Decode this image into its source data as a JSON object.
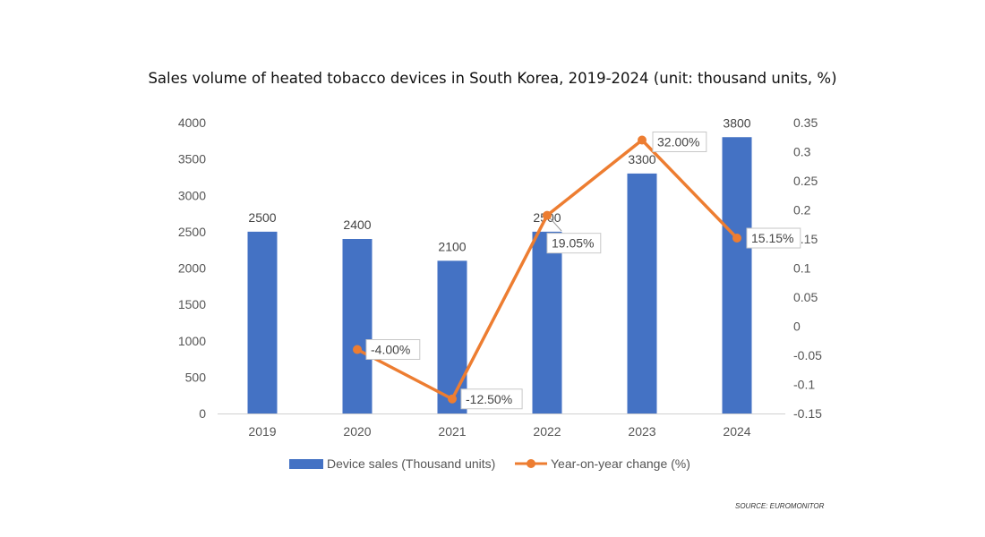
{
  "chart_data": {
    "type": "bar+line",
    "title": "Sales volume of heated tobacco devices in South Korea, 2019-2024 (unit: thousand units, %)",
    "categories": [
      "2019",
      "2020",
      "2021",
      "2022",
      "2023",
      "2024"
    ],
    "series": [
      {
        "name": "Device sales (Thousand units)",
        "type": "bar",
        "axis": "left",
        "values": [
          2500,
          2400,
          2100,
          2500,
          3300,
          3800
        ],
        "labels": [
          "2500",
          "2400",
          "2100",
          "2500",
          "3300",
          "3800"
        ],
        "color": "#4472C4"
      },
      {
        "name": "Year-on-year change (%)",
        "type": "line",
        "axis": "right",
        "values": [
          null,
          -0.04,
          -0.125,
          0.1905,
          0.32,
          0.1515
        ],
        "labels": [
          null,
          "-4.00%",
          "-12.50%",
          "19.05%",
          "32.00%",
          "15.15%"
        ],
        "color": "#ED7D31"
      }
    ],
    "yleft": {
      "min": 0,
      "max": 4000,
      "ticks": [
        "0",
        "500",
        "1000",
        "1500",
        "2000",
        "2500",
        "3000",
        "3500",
        "4000"
      ]
    },
    "yright": {
      "min": -0.15,
      "max": 0.35,
      "ticks": [
        "-0.15",
        "-0.1",
        "-0.05",
        "0",
        "0.05",
        "0.1",
        "0.15",
        "0.2",
        "0.25",
        "0.3",
        "0.35"
      ]
    },
    "legend": "bottom",
    "grid": false
  },
  "source": "SOURCE: EUROMONITOR"
}
